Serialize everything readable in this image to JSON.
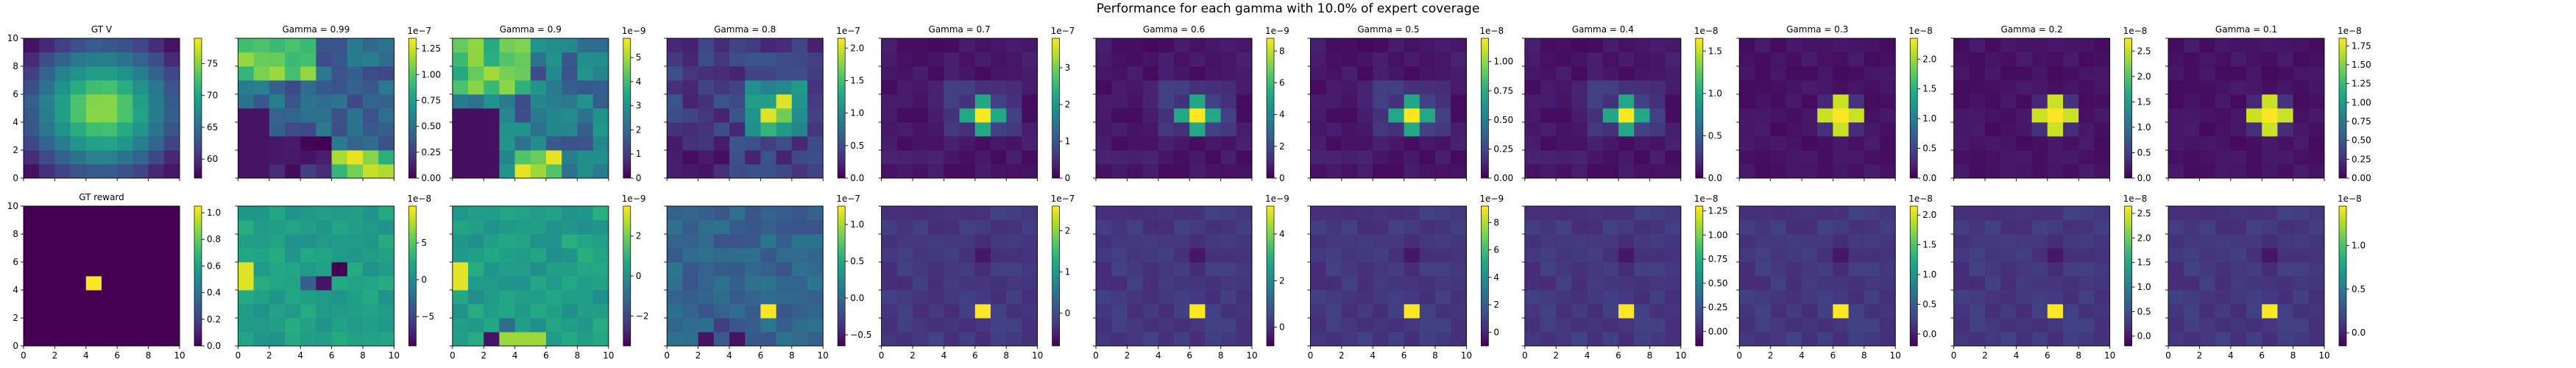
{
  "figure": {
    "title": "Performance for each gamma with 10.0% of expert coverage"
  },
  "chart_data": {
    "type": "heatmap",
    "grid_size": 10,
    "xlim": [
      0,
      10
    ],
    "ylim": [
      0,
      10
    ],
    "x_ticks": [
      "0",
      "2",
      "4",
      "6",
      "8",
      "10"
    ],
    "y_ticks": [
      "0",
      "2",
      "4",
      "6",
      "8",
      "10"
    ],
    "colormap": "viridis",
    "top_row": [
      {
        "title": "GT V",
        "pattern": "bump",
        "cbar_ticks": [
          "60",
          "65",
          "70",
          "75"
        ],
        "cbar_range": [
          57,
          79
        ],
        "exponent": ""
      },
      {
        "title": "Gamma = 0.99",
        "pattern": "g99",
        "cbar_ticks": [
          "0.00",
          "0.25",
          "0.50",
          "0.75",
          "1.00",
          "1.25"
        ],
        "cbar_range": [
          0,
          1.35
        ],
        "exponent": "1e−7"
      },
      {
        "title": "Gamma = 0.9",
        "pattern": "g9",
        "cbar_ticks": [
          "0",
          "1",
          "2",
          "3",
          "4",
          "5"
        ],
        "cbar_range": [
          0,
          5.8
        ],
        "exponent": "1e−9"
      },
      {
        "title": "Gamma = 0.8",
        "pattern": "g8",
        "cbar_ticks": [
          "0.0",
          "0.5",
          "1.0",
          "1.5",
          "2.0"
        ],
        "cbar_range": [
          0,
          2.15
        ],
        "exponent": "1e−7"
      },
      {
        "title": "Gamma = 0.7",
        "pattern": "peak",
        "cbar_ticks": [
          "0",
          "1",
          "2",
          "3"
        ],
        "cbar_range": [
          0,
          3.8
        ],
        "exponent": "1e−7"
      },
      {
        "title": "Gamma = 0.6",
        "pattern": "peak",
        "cbar_ticks": [
          "0",
          "2",
          "4",
          "6",
          "8"
        ],
        "cbar_range": [
          0,
          8.8
        ],
        "exponent": "1e−9"
      },
      {
        "title": "Gamma = 0.5",
        "pattern": "peak",
        "cbar_ticks": [
          "0.00",
          "0.25",
          "0.50",
          "0.75",
          "1.00"
        ],
        "cbar_range": [
          0,
          1.2
        ],
        "exponent": "1e−8"
      },
      {
        "title": "Gamma = 0.4",
        "pattern": "peak",
        "cbar_ticks": [
          "0.0",
          "0.5",
          "1.0",
          "1.5"
        ],
        "cbar_range": [
          0,
          1.65
        ],
        "exponent": "1e−8"
      },
      {
        "title": "Gamma = 0.3",
        "pattern": "cross",
        "cbar_ticks": [
          "0.0",
          "0.5",
          "1.0",
          "1.5",
          "2.0"
        ],
        "cbar_range": [
          0,
          2.35
        ],
        "exponent": "1e−8"
      },
      {
        "title": "Gamma = 0.2",
        "pattern": "cross",
        "cbar_ticks": [
          "0.0",
          "0.5",
          "1.0",
          "1.5",
          "2.0",
          "2.5"
        ],
        "cbar_range": [
          0,
          2.75
        ],
        "exponent": "1e−8"
      },
      {
        "title": "Gamma = 0.1",
        "pattern": "cross",
        "cbar_ticks": [
          "0.00",
          "0.25",
          "0.50",
          "0.75",
          "1.00",
          "1.25",
          "1.50",
          "1.75"
        ],
        "cbar_range": [
          0,
          1.85
        ],
        "exponent": "1e−8"
      }
    ],
    "bottom_row": [
      {
        "title": "GT reward",
        "pattern": "gtr",
        "cbar_ticks": [
          "0.0",
          "0.2",
          "0.4",
          "0.6",
          "0.8",
          "1.0"
        ],
        "cbar_range": [
          0,
          1.05
        ],
        "exponent": ""
      },
      {
        "title": "",
        "pattern": "r99",
        "cbar_ticks": [
          "−5",
          "0",
          "5"
        ],
        "cbar_range": [
          -9,
          10
        ],
        "exponent": "1e−8"
      },
      {
        "title": "",
        "pattern": "r9",
        "cbar_ticks": [
          "−2",
          "0",
          "2"
        ],
        "cbar_range": [
          -3.5,
          3.5
        ],
        "exponent": "1e−9"
      },
      {
        "title": "",
        "pattern": "r8",
        "cbar_ticks": [
          "−0.5",
          "0.0",
          "0.5",
          "1.0"
        ],
        "cbar_range": [
          -0.65,
          1.25
        ],
        "exponent": "1e−7"
      },
      {
        "title": "",
        "pattern": "rpeak",
        "cbar_ticks": [
          "0",
          "1",
          "2"
        ],
        "cbar_range": [
          -0.8,
          2.6
        ],
        "exponent": "1e−7"
      },
      {
        "title": "",
        "pattern": "rpeak",
        "cbar_ticks": [
          "0",
          "2",
          "4"
        ],
        "cbar_range": [
          -0.8,
          5.2
        ],
        "exponent": "1e−9"
      },
      {
        "title": "",
        "pattern": "rpeak",
        "cbar_ticks": [
          "0",
          "2",
          "4",
          "6",
          "8"
        ],
        "cbar_range": [
          -1,
          9.2
        ],
        "exponent": "1e−9"
      },
      {
        "title": "",
        "pattern": "rpeak",
        "cbar_ticks": [
          "0.00",
          "0.25",
          "0.50",
          "0.75",
          "1.00",
          "1.25"
        ],
        "cbar_range": [
          -0.15,
          1.3
        ],
        "exponent": "1e−8"
      },
      {
        "title": "",
        "pattern": "rpeak",
        "cbar_ticks": [
          "0.0",
          "0.5",
          "1.0",
          "1.5",
          "2.0"
        ],
        "cbar_range": [
          -0.2,
          2.15
        ],
        "exponent": "1e−8"
      },
      {
        "title": "",
        "pattern": "rpeak",
        "cbar_ticks": [
          "0.0",
          "0.5",
          "1.0",
          "1.5",
          "2.0",
          "2.5"
        ],
        "cbar_range": [
          -0.2,
          2.65
        ],
        "exponent": "1e−8"
      },
      {
        "title": "",
        "pattern": "rpeak",
        "cbar_ticks": [
          "0.0",
          "0.5",
          "1.0"
        ],
        "cbar_range": [
          -0.15,
          1.45
        ],
        "exponent": "1e−8"
      }
    ]
  }
}
